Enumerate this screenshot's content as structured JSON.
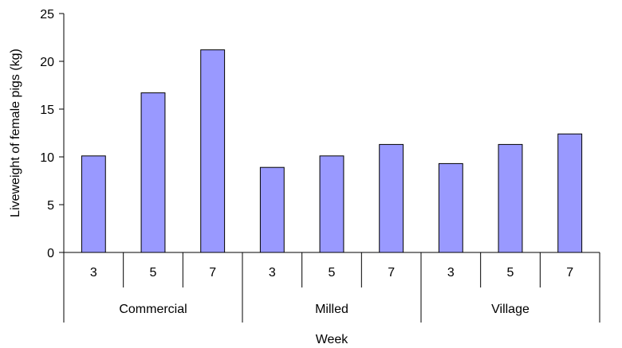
{
  "chart_data": {
    "type": "bar",
    "title": "",
    "xlabel": "Week",
    "ylabel": "Liveweight of female pigs (kg)",
    "ylim": [
      0,
      25
    ],
    "yticks": [
      0,
      5,
      10,
      15,
      20,
      25
    ],
    "grid": false,
    "groups": [
      {
        "name": "Commercial",
        "categories": [
          "3",
          "5",
          "7"
        ],
        "values": [
          10.1,
          16.7,
          21.2
        ]
      },
      {
        "name": "Milled",
        "categories": [
          "3",
          "5",
          "7"
        ],
        "values": [
          8.9,
          10.1,
          11.3
        ]
      },
      {
        "name": "Village",
        "categories": [
          "3",
          "5",
          "7"
        ],
        "values": [
          9.3,
          11.3,
          12.4
        ]
      }
    ],
    "bar_color": "#9999ff",
    "bar_edge_color": "#000000"
  }
}
